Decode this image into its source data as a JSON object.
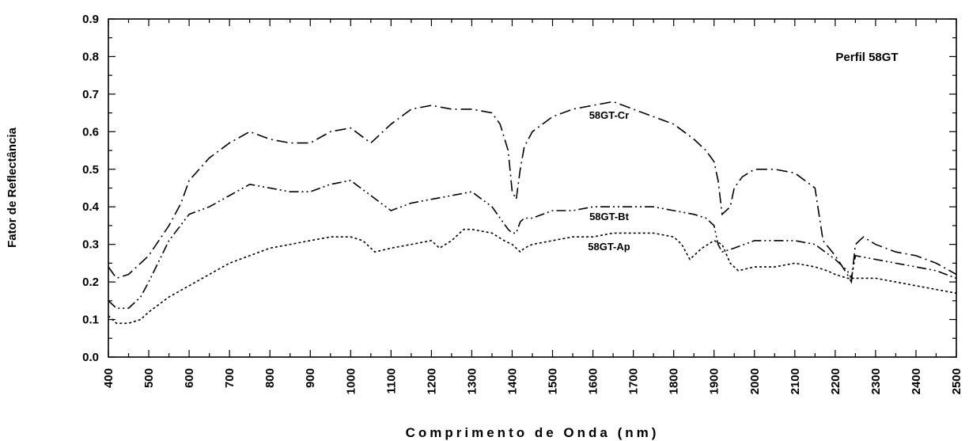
{
  "chart_data": {
    "type": "line",
    "title": "Perfil 58GT",
    "xlabel": "Comprimento de Onda (nm)",
    "ylabel": "Fator de Reflectância",
    "xlim": [
      400,
      2500
    ],
    "ylim": [
      0,
      0.9
    ],
    "xticks": [
      400,
      500,
      600,
      700,
      800,
      900,
      1000,
      1100,
      1200,
      1300,
      1400,
      1500,
      1600,
      1700,
      1800,
      1900,
      2000,
      2100,
      2200,
      2300,
      2400,
      2500
    ],
    "yticks": [
      0.0,
      0.1,
      0.2,
      0.3,
      0.4,
      0.5,
      0.6,
      0.7,
      0.8,
      0.9
    ],
    "ytick_labels": [
      "0.0",
      "0.1",
      "0.2",
      "0.3",
      "0.4",
      "0.5",
      "0.6",
      "0.7",
      "0.8",
      "0.9"
    ],
    "grid": false,
    "series": [
      {
        "name": "58GT-Cr",
        "style": "dash-dot",
        "annotation": {
          "text": "58GT-Cr",
          "x": 1640,
          "y": 0.645
        },
        "x": [
          400,
          420,
          450,
          480,
          500,
          550,
          580,
          600,
          650,
          700,
          750,
          800,
          850,
          900,
          950,
          1000,
          1050,
          1100,
          1150,
          1200,
          1250,
          1300,
          1350,
          1370,
          1390,
          1400,
          1410,
          1420,
          1430,
          1450,
          1500,
          1550,
          1600,
          1650,
          1700,
          1750,
          1800,
          1850,
          1880,
          1900,
          1910,
          1920,
          1940,
          1950,
          1970,
          2000,
          2050,
          2100,
          2150,
          2160,
          2170,
          2200,
          2230,
          2240,
          2250,
          2270,
          2300,
          2350,
          2400,
          2450,
          2500
        ],
        "y": [
          0.24,
          0.21,
          0.22,
          0.25,
          0.27,
          0.35,
          0.41,
          0.47,
          0.53,
          0.57,
          0.6,
          0.58,
          0.57,
          0.57,
          0.6,
          0.61,
          0.57,
          0.62,
          0.66,
          0.67,
          0.66,
          0.66,
          0.65,
          0.62,
          0.55,
          0.44,
          0.42,
          0.5,
          0.56,
          0.6,
          0.64,
          0.66,
          0.67,
          0.68,
          0.66,
          0.64,
          0.62,
          0.58,
          0.55,
          0.52,
          0.47,
          0.38,
          0.4,
          0.45,
          0.48,
          0.5,
          0.5,
          0.49,
          0.45,
          0.38,
          0.31,
          0.27,
          0.22,
          0.2,
          0.3,
          0.32,
          0.3,
          0.28,
          0.27,
          0.25,
          0.22
        ]
      },
      {
        "name": "58GT-Bt",
        "style": "dash-dot-dot",
        "annotation": {
          "text": "58GT-Bt",
          "x": 1640,
          "y": 0.375
        },
        "x": [
          400,
          420,
          450,
          480,
          500,
          550,
          600,
          650,
          700,
          750,
          800,
          850,
          900,
          950,
          1000,
          1050,
          1100,
          1150,
          1200,
          1250,
          1300,
          1350,
          1370,
          1390,
          1400,
          1410,
          1420,
          1430,
          1450,
          1500,
          1550,
          1600,
          1650,
          1700,
          1750,
          1800,
          1850,
          1880,
          1900,
          1910,
          1920,
          1950,
          2000,
          2050,
          2100,
          2150,
          2200,
          2230,
          2240,
          2250,
          2300,
          2350,
          2400,
          2450,
          2500
        ],
        "y": [
          0.15,
          0.13,
          0.13,
          0.16,
          0.2,
          0.31,
          0.38,
          0.4,
          0.43,
          0.46,
          0.45,
          0.44,
          0.44,
          0.46,
          0.47,
          0.43,
          0.39,
          0.41,
          0.42,
          0.43,
          0.44,
          0.4,
          0.37,
          0.34,
          0.33,
          0.33,
          0.36,
          0.37,
          0.37,
          0.39,
          0.39,
          0.4,
          0.4,
          0.4,
          0.4,
          0.39,
          0.38,
          0.37,
          0.35,
          0.3,
          0.28,
          0.29,
          0.31,
          0.31,
          0.31,
          0.3,
          0.26,
          0.23,
          0.21,
          0.27,
          0.26,
          0.25,
          0.24,
          0.23,
          0.21
        ]
      },
      {
        "name": "58GT-Ap",
        "style": "dotted",
        "annotation": {
          "text": "58GT-Ap",
          "x": 1640,
          "y": 0.295
        },
        "x": [
          400,
          420,
          450,
          480,
          500,
          550,
          600,
          650,
          700,
          750,
          800,
          850,
          900,
          950,
          1000,
          1030,
          1050,
          1060,
          1100,
          1150,
          1200,
          1220,
          1250,
          1280,
          1300,
          1350,
          1380,
          1400,
          1420,
          1430,
          1450,
          1500,
          1550,
          1600,
          1650,
          1700,
          1750,
          1800,
          1820,
          1840,
          1870,
          1900,
          1920,
          1940,
          1960,
          2000,
          2050,
          2100,
          2150,
          2180,
          2200,
          2230,
          2250,
          2300,
          2350,
          2400,
          2450,
          2500
        ],
        "y": [
          0.11,
          0.09,
          0.09,
          0.1,
          0.12,
          0.16,
          0.19,
          0.22,
          0.25,
          0.27,
          0.29,
          0.3,
          0.31,
          0.32,
          0.32,
          0.31,
          0.29,
          0.28,
          0.29,
          0.3,
          0.31,
          0.29,
          0.31,
          0.34,
          0.34,
          0.33,
          0.31,
          0.3,
          0.28,
          0.29,
          0.3,
          0.31,
          0.32,
          0.32,
          0.33,
          0.33,
          0.33,
          0.32,
          0.3,
          0.26,
          0.29,
          0.31,
          0.3,
          0.25,
          0.23,
          0.24,
          0.24,
          0.25,
          0.24,
          0.23,
          0.22,
          0.21,
          0.21,
          0.21,
          0.2,
          0.19,
          0.18,
          0.17
        ]
      }
    ]
  }
}
